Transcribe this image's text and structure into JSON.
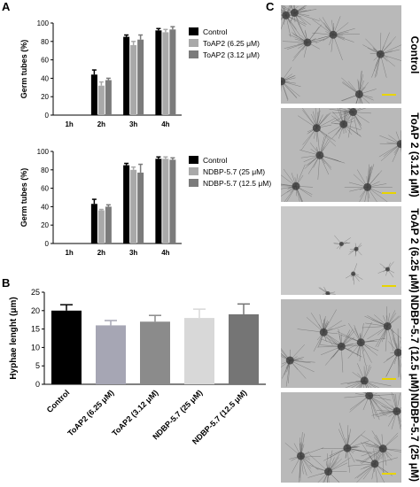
{
  "panels": {
    "a": "A",
    "b": "B",
    "c": "C"
  },
  "chart_data": [
    {
      "type": "bar",
      "panel": "A",
      "ylabel": "Germ tubes (%)",
      "ylim": [
        0,
        100
      ],
      "yticks": [
        0,
        20,
        40,
        60,
        80,
        100
      ],
      "categories": [
        "1h",
        "2h",
        "3h",
        "4h"
      ],
      "series": [
        {
          "name": "Control",
          "color": "#000000",
          "values": [
            0,
            44,
            85,
            92
          ],
          "errors": [
            0,
            5,
            2,
            2
          ]
        },
        {
          "name": "ToAP2 (6.25 μM)",
          "color": "#a9a9a9",
          "values": [
            0,
            32,
            76,
            90
          ],
          "errors": [
            0,
            4,
            4,
            3
          ]
        },
        {
          "name": "ToAP2 (3.12 μM)",
          "color": "#7b7b7b",
          "values": [
            0,
            38,
            82,
            93
          ],
          "errors": [
            0,
            2,
            5,
            3
          ]
        }
      ]
    },
    {
      "type": "bar",
      "panel": "A",
      "ylabel": "Germ tubes (%)",
      "ylim": [
        0,
        100
      ],
      "yticks": [
        0,
        20,
        40,
        60,
        80,
        100
      ],
      "categories": [
        "1h",
        "2h",
        "3h",
        "4h"
      ],
      "series": [
        {
          "name": "Control",
          "color": "#000000",
          "values": [
            0,
            43,
            85,
            92
          ],
          "errors": [
            0,
            5,
            2,
            2
          ]
        },
        {
          "name": "NDBP-5.7 (25 μM)",
          "color": "#a9a9a9",
          "values": [
            0,
            36,
            80,
            92
          ],
          "errors": [
            0,
            1,
            3,
            2
          ]
        },
        {
          "name": "NDBP-5.7 (12.5 μM)",
          "color": "#7b7b7b",
          "values": [
            0,
            40,
            77,
            91
          ],
          "errors": [
            0,
            2,
            9,
            2
          ]
        }
      ]
    },
    {
      "type": "bar",
      "panel": "B",
      "ylabel": "Hyphae lenght (μm)",
      "ylim": [
        0,
        25
      ],
      "yticks": [
        0,
        5,
        10,
        15,
        20,
        25
      ],
      "categories": [
        "Control",
        "ToAP2 (6.25 μM)",
        "ToAP2 (3.12 μM)",
        "NDBP-5.7 (25 μM)",
        "NDBP-5.7 (12.5 μM)"
      ],
      "values": [
        20,
        16,
        17,
        18,
        19
      ],
      "errors": [
        1.6,
        1.3,
        1.7,
        2.4,
        2.8
      ],
      "colors": [
        "#000000",
        "#a6a6b4",
        "#8b8b8b",
        "#d8d8d8",
        "#757575"
      ]
    }
  ],
  "micrographs": [
    {
      "label": "Control",
      "density": "dense"
    },
    {
      "label": "ToAP 2 (3.12 μM)",
      "density": "dense"
    },
    {
      "label": "ToAP 2 (6.25 μM)",
      "density": "sparse"
    },
    {
      "label": "NDBP-5.7 (12.5 μM)",
      "density": "dense"
    },
    {
      "label": "NDBP-5.7 (25 μM)",
      "density": "dense"
    }
  ]
}
